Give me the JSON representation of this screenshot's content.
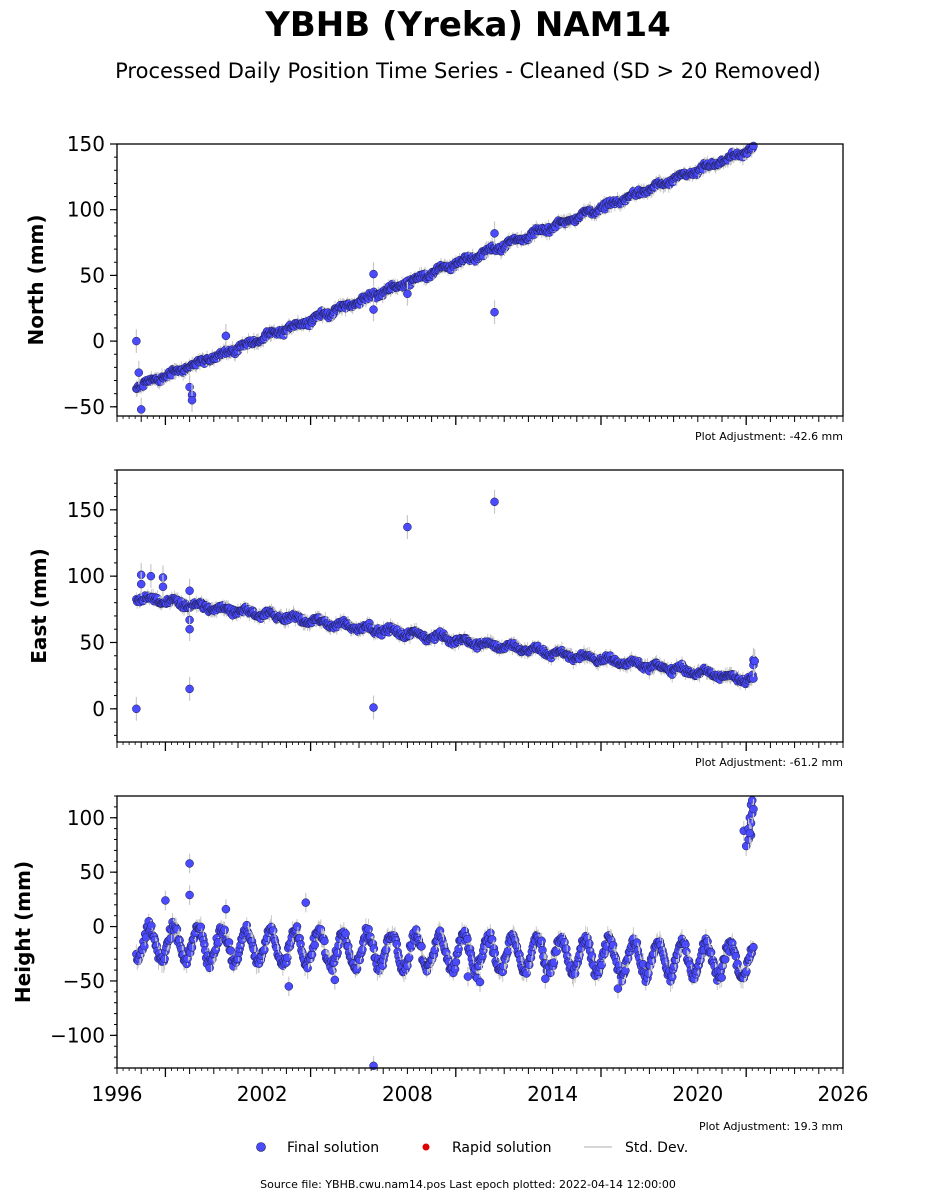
{
  "title": "YBHB (Yreka) NAM14",
  "subtitle": "Processed Daily Position Time Series - Cleaned (SD > 20 Removed)",
  "legend": {
    "final": "Final solution",
    "rapid": "Rapid solution",
    "std": "Std. Dev."
  },
  "footer": "Source file: YBHB.cwu.nam14.pos  Last epoch plotted: 2022-04-14 12:00:00",
  "colors": {
    "final": "#4a4aff",
    "rapid": "#e00000",
    "std": "#c8c8c8",
    "edge": "#1a1a40"
  },
  "chart_data": [
    {
      "type": "scatter",
      "ylabel": "North (mm)",
      "adjustment": "Plot Adjustment: -42.6 mm",
      "xlim": [
        1996,
        2026
      ],
      "ylim": [
        -57,
        150
      ],
      "yticks": [
        -50,
        0,
        50,
        100,
        150
      ],
      "ytick_labels": [
        "−50",
        "0",
        "50",
        "100",
        "150"
      ],
      "trend": {
        "start": [
          1996.8,
          -35
        ],
        "end": [
          2022.3,
          146
        ],
        "amp": 1.5,
        "noise": 2.5
      },
      "outliers": [
        [
          1996.8,
          0
        ],
        [
          1996.9,
          -24
        ],
        [
          1997.0,
          -52
        ],
        [
          1999.0,
          -35
        ],
        [
          1999.1,
          -41
        ],
        [
          1999.1,
          -45
        ],
        [
          2000.5,
          4
        ],
        [
          2006.6,
          51
        ],
        [
          2006.6,
          24
        ],
        [
          2008.0,
          36
        ],
        [
          2011.6,
          82
        ],
        [
          2011.6,
          22
        ]
      ]
    },
    {
      "type": "scatter",
      "ylabel": "East (mm)",
      "adjustment": "Plot Adjustment: -61.2 mm",
      "xlim": [
        1996,
        2026
      ],
      "ylim": [
        -25,
        180
      ],
      "yticks": [
        0,
        50,
        100,
        150
      ],
      "ytick_labels": [
        "0",
        "50",
        "100",
        "150"
      ],
      "trend": {
        "start": [
          1996.8,
          84
        ],
        "end": [
          2022.3,
          22
        ],
        "amp": 2.0,
        "noise": 2.5
      },
      "outliers": [
        [
          1996.8,
          0
        ],
        [
          1997.0,
          101
        ],
        [
          1997.0,
          94
        ],
        [
          1997.4,
          100
        ],
        [
          1997.9,
          99
        ],
        [
          1997.9,
          92
        ],
        [
          1999.0,
          89
        ],
        [
          1999.0,
          67
        ],
        [
          1999.0,
          60
        ],
        [
          1999.0,
          15
        ],
        [
          2006.6,
          1
        ],
        [
          2008.0,
          137
        ],
        [
          2011.6,
          156
        ],
        [
          2022.3,
          37
        ],
        [
          2022.3,
          33
        ],
        [
          2022.35,
          36
        ]
      ]
    },
    {
      "type": "scatter",
      "ylabel": "Height (mm)",
      "adjustment": "Plot Adjustment: 19.3 mm",
      "xlim": [
        1996,
        2026
      ],
      "ylim": [
        -130,
        120
      ],
      "yticks": [
        -100,
        -50,
        0,
        50,
        100
      ],
      "ytick_labels": [
        "−100",
        "−50",
        "0",
        "50",
        "100"
      ],
      "xticks": [
        1996,
        2002,
        2008,
        2014,
        2020,
        2026
      ],
      "xtick_labels": [
        "1996",
        "2002",
        "2008",
        "2014",
        "2020",
        "2026"
      ],
      "trend": {
        "start": [
          1996.8,
          -15
        ],
        "end": [
          2022.3,
          -32
        ],
        "amp": 16,
        "noise": 6
      },
      "outliers": [
        [
          1999.0,
          58
        ],
        [
          1999.0,
          29
        ],
        [
          1998.0,
          24
        ],
        [
          2000.5,
          16
        ],
        [
          2003.1,
          -55
        ],
        [
          2003.8,
          22
        ],
        [
          2005.0,
          -49
        ],
        [
          2006.6,
          -128
        ],
        [
          2010.5,
          -46
        ],
        [
          2011.0,
          -51
        ],
        [
          2013.7,
          -48
        ],
        [
          2016.7,
          -57
        ],
        [
          2021.9,
          88
        ],
        [
          2022.0,
          74
        ],
        [
          2022.1,
          80
        ],
        [
          2022.15,
          100
        ],
        [
          2022.2,
          112
        ],
        [
          2022.25,
          116
        ],
        [
          2022.2,
          95
        ],
        [
          2022.1,
          90
        ],
        [
          2022.2,
          84
        ],
        [
          2022.25,
          104
        ],
        [
          2022.3,
          108
        ],
        [
          2022.15,
          86
        ]
      ]
    }
  ]
}
